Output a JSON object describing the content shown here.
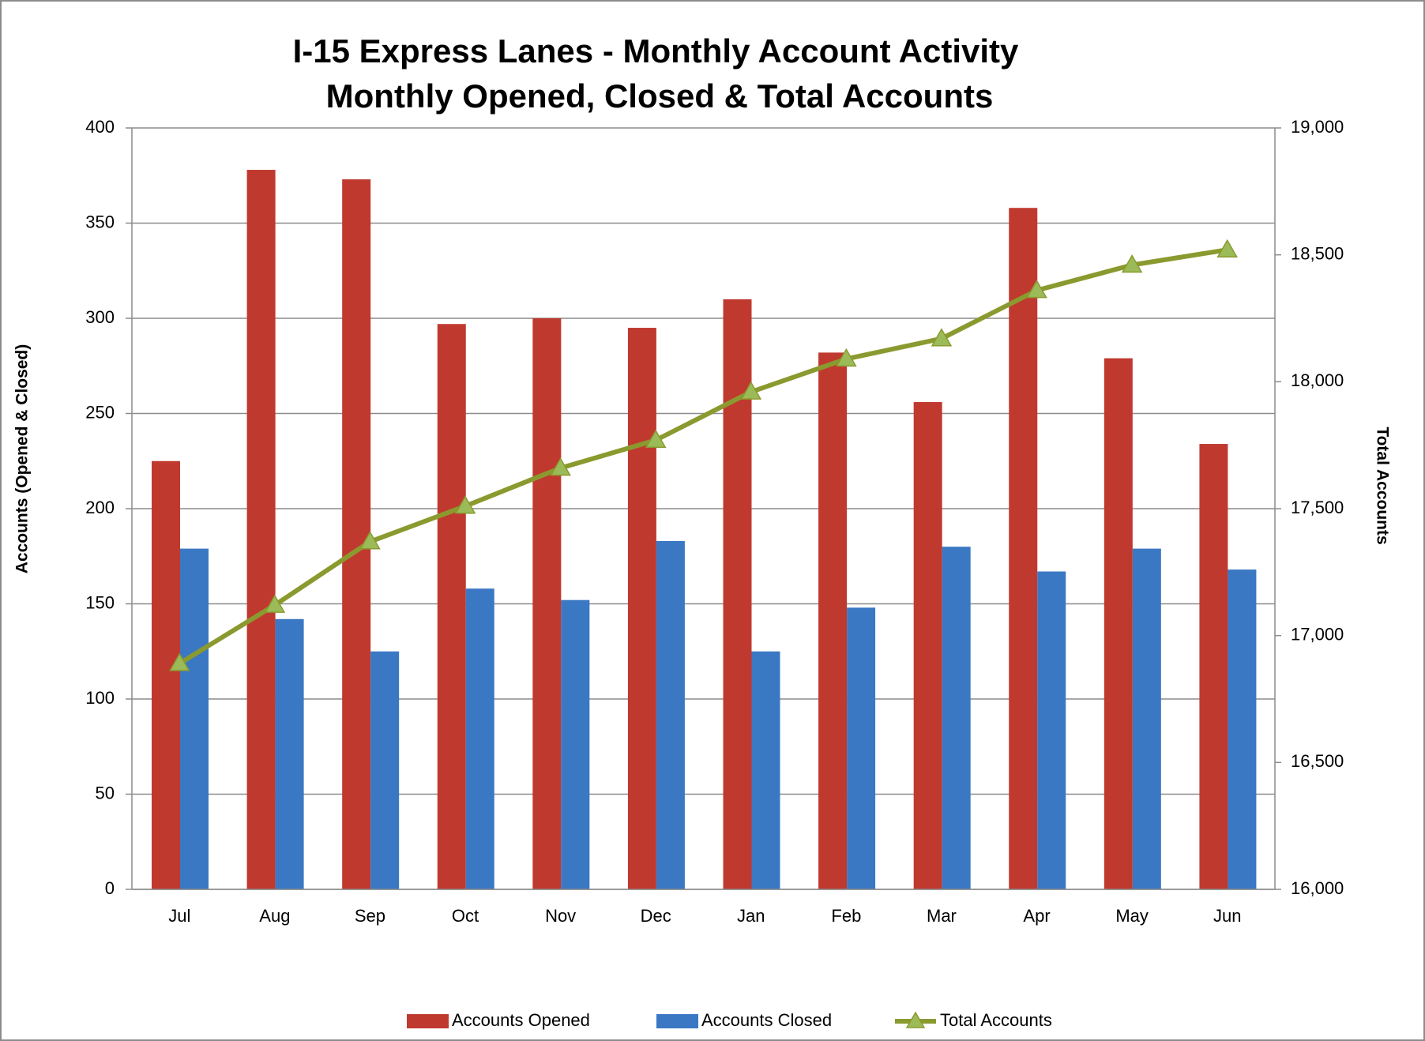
{
  "chart_data": {
    "type": "bar_line",
    "title": "I-15 Express Lanes - Monthly Account Activity",
    "subtitle": "Monthly Opened, Closed & Total Accounts",
    "y_label": "Accounts (Opened & Closed)",
    "y2_label": "Total Accounts",
    "categories": [
      "Jul",
      "Aug",
      "Sep",
      "Oct",
      "Nov",
      "Dec",
      "Jan",
      "Feb",
      "Mar",
      "Apr",
      "May",
      "Jun"
    ],
    "series": [
      {
        "name": "Accounts Opened",
        "type": "bar",
        "color": "#c0392f",
        "values": [
          225,
          378,
          373,
          297,
          300,
          295,
          310,
          282,
          256,
          358,
          279,
          234
        ]
      },
      {
        "name": "Accounts Closed",
        "type": "bar",
        "color": "#3a78c4",
        "values": [
          179,
          142,
          125,
          158,
          152,
          183,
          125,
          148,
          180,
          167,
          179,
          168
        ]
      },
      {
        "name": "Total Accounts",
        "type": "line",
        "axis": "y2",
        "color": "#8b9a2f",
        "marker_color": "#9bbb59",
        "values": [
          16890,
          17120,
          17370,
          17510,
          17660,
          17770,
          17960,
          18090,
          18170,
          18360,
          18460,
          18520
        ]
      }
    ],
    "ylim": [
      0,
      400
    ],
    "yticks": [
      0,
      50,
      100,
      150,
      200,
      250,
      300,
      350,
      400
    ],
    "y2lim": [
      16000,
      19000
    ],
    "y2ticks": [
      {
        "value": 16000,
        "label": "16,000"
      },
      {
        "value": 16500,
        "label": "16,500"
      },
      {
        "value": 17000,
        "label": "17,000"
      },
      {
        "value": 17500,
        "label": "17,500"
      },
      {
        "value": 18000,
        "label": "18,000"
      },
      {
        "value": 18500,
        "label": "18,500"
      },
      {
        "value": 19000,
        "label": "19,000"
      }
    ],
    "grid": true,
    "legend": "bottom"
  }
}
